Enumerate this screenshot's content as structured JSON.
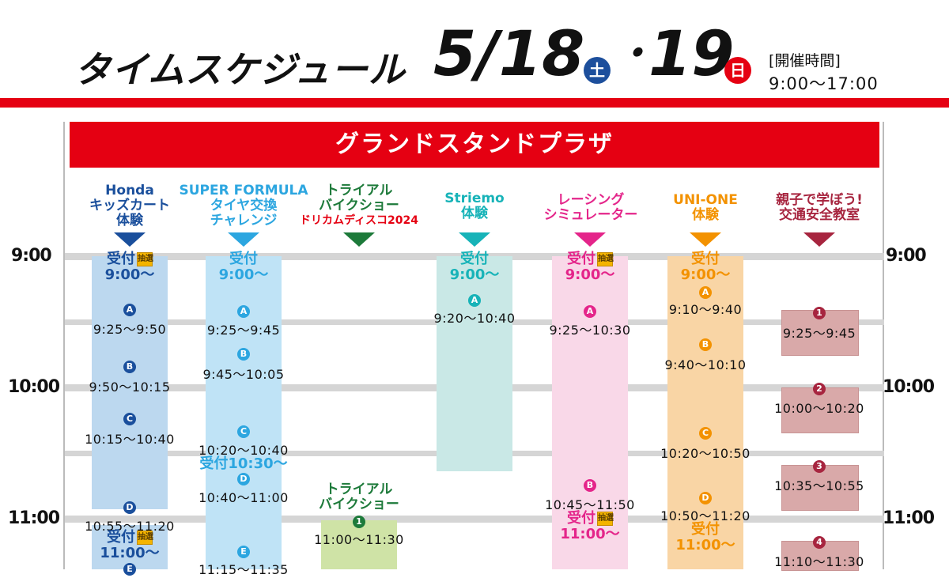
{
  "header": {
    "title": "タイムスケジュール",
    "date_first": "5/18",
    "day_first": "土",
    "sep": "・",
    "date_second": "19",
    "day_second": "日",
    "hours_label": "[開催時間]",
    "hours_value": "9:00～17:00",
    "colors": {
      "accent_red": "#e50012",
      "saturday_blue": "#1d4f9c"
    }
  },
  "venue": {
    "name": "グランドスタンドプラザ"
  },
  "times": {
    "t900": "9:00",
    "t1000": "10:00",
    "t1100": "11:00"
  },
  "columns": {
    "honda": {
      "title1": "Honda",
      "title2": "キッズカート",
      "title3": "体験",
      "color": "#1a4f9c",
      "reception": "受付",
      "lottery": "抽選",
      "reception_time": "9:00～",
      "sessions": [
        {
          "mark": "A",
          "time": "9:25～9:50"
        },
        {
          "mark": "B",
          "time": "9:50～10:15"
        },
        {
          "mark": "C",
          "time": "10:15～10:40"
        },
        {
          "mark": "D",
          "time": "10:55～11:20"
        }
      ],
      "reception2": "受付",
      "reception2_time": "11:00～",
      "next_mark": "E"
    },
    "sf": {
      "title1": "SUPER FORMULA",
      "title2": "タイヤ交換",
      "title3": "チャレンジ",
      "color": "#2ca6e0",
      "reception": "受付",
      "reception_time": "9:00～",
      "sessions": [
        {
          "mark": "A",
          "time": "9:25～9:45"
        },
        {
          "mark": "B",
          "time": "9:45～10:05"
        },
        {
          "mark": "C",
          "time": "10:20～10:40"
        },
        {
          "mark": "D",
          "time": "10:40～11:00"
        },
        {
          "mark": "E",
          "time": "11:15～11:35"
        }
      ],
      "reception2": "受付10:30～"
    },
    "trial": {
      "title1": "トライアル",
      "title2": "バイクショー",
      "title3": "ドリカムディスコ2024",
      "color": "#1d7a3a",
      "title3_color": "#e50012",
      "event_title1": "トライアル",
      "event_title2": "バイクショー",
      "sessions": [
        {
          "mark": "1",
          "time": "11:00～11:30"
        }
      ]
    },
    "striemo": {
      "title1": "Striemo",
      "title2": "体験",
      "color": "#17b3b8",
      "reception": "受付",
      "reception_time": "9:00～",
      "sessions": [
        {
          "mark": "A",
          "time": "9:20～10:40"
        }
      ]
    },
    "racing": {
      "title1": "レーシング",
      "title2": "シミュレーター",
      "color": "#e4258a",
      "reception": "受付",
      "lottery": "抽選",
      "reception_time": "9:00～",
      "sessions": [
        {
          "mark": "A",
          "time": "9:25～10:30"
        },
        {
          "mark": "B",
          "time": "10:45～11:50"
        }
      ],
      "reception2": "受付",
      "reception2_time": "11:00～"
    },
    "unione": {
      "title1": "UNI-ONE",
      "title2": "体験",
      "color": "#f39200",
      "reception": "受付",
      "reception_time": "9:00～",
      "sessions": [
        {
          "mark": "A",
          "time": "9:10～9:40"
        },
        {
          "mark": "B",
          "time": "9:40～10:10"
        },
        {
          "mark": "C",
          "time": "10:20～10:50"
        },
        {
          "mark": "D",
          "time": "10:50～11:20"
        }
      ],
      "reception2": "受付",
      "reception2_time": "11:00～"
    },
    "safety": {
      "title1": "親子で学ぼう!",
      "title2": "交通安全教室",
      "color": "#a7253f",
      "sessions": [
        {
          "mark": "1",
          "time": "9:25～9:45"
        },
        {
          "mark": "2",
          "time": "10:00～10:20"
        },
        {
          "mark": "3",
          "time": "10:35～10:55"
        },
        {
          "mark": "4",
          "time": "11:10～11:30"
        }
      ]
    }
  }
}
